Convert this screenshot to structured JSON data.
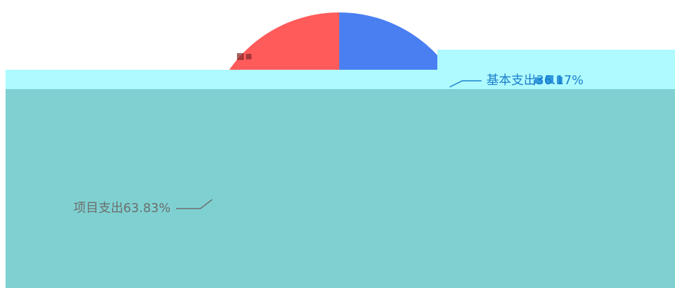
{
  "chart_data": {
    "type": "pie",
    "slices": [
      {
        "label": "基本支出",
        "value": 36.17,
        "display": "基本支出36.17%"
      },
      {
        "label": "项目支出",
        "value": 63.83,
        "display": "项目支出63.83%"
      }
    ],
    "colors": {
      "pie_upper_blue": "#4a7ff2",
      "pie_lower_blue": "#0053c8",
      "pie_upper_red": "#ff5b5b",
      "pie_lower_maroon": "#772f30",
      "pie_band_blue": "#00b2ff",
      "pie_band_rose": "#bf8886",
      "label_blue": "#1d7fcb",
      "label_gray": "#6d6d6d",
      "overlay_band": "#aefaff",
      "overlay_panel": "#7fd1d1"
    }
  }
}
